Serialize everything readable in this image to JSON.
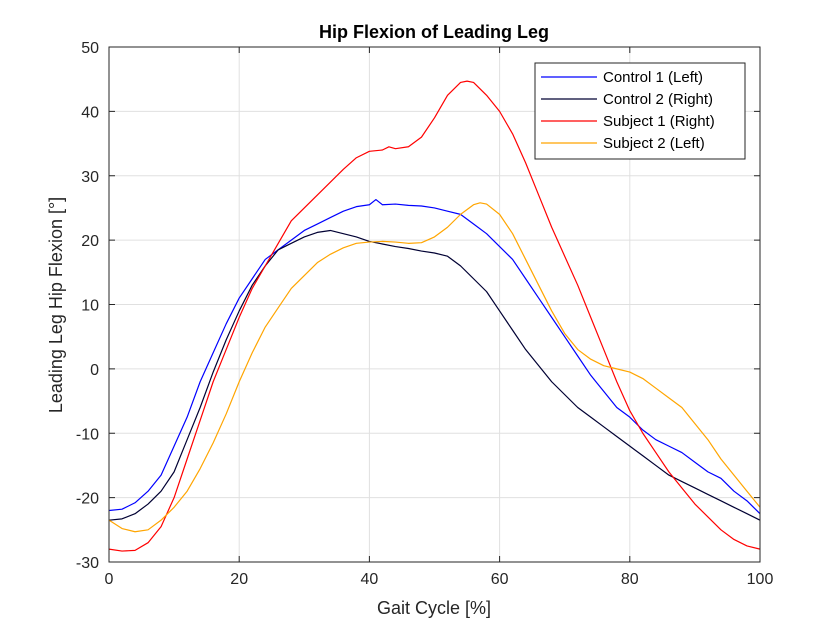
{
  "chart_data": {
    "type": "line",
    "title": "Hip Flexion of Leading Leg",
    "xlabel": "Gait Cycle [%]",
    "ylabel": "Leading Leg Hip Flexion [°]",
    "xlim": [
      0,
      100
    ],
    "ylim": [
      -30,
      50
    ],
    "xticks": [
      0,
      20,
      40,
      60,
      80,
      100
    ],
    "yticks": [
      -30,
      -20,
      -10,
      0,
      10,
      20,
      30,
      40,
      50
    ],
    "grid": true,
    "legend_position": "top-right",
    "series": [
      {
        "name": "Control 1 (Left)",
        "color": "#0000ff",
        "points": [
          [
            0,
            -22
          ],
          [
            2,
            -21.8
          ],
          [
            4,
            -20.8
          ],
          [
            6,
            -19
          ],
          [
            8,
            -16.5
          ],
          [
            10,
            -12
          ],
          [
            12,
            -7.5
          ],
          [
            14,
            -2
          ],
          [
            16,
            2.5
          ],
          [
            18,
            7
          ],
          [
            20,
            11
          ],
          [
            22,
            14
          ],
          [
            24,
            17
          ],
          [
            26,
            18.5
          ],
          [
            28,
            20
          ],
          [
            30,
            21.5
          ],
          [
            32,
            22.5
          ],
          [
            34,
            23.5
          ],
          [
            36,
            24.5
          ],
          [
            38,
            25.2
          ],
          [
            40,
            25.5
          ],
          [
            41,
            26.3
          ],
          [
            42,
            25.5
          ],
          [
            44,
            25.6
          ],
          [
            46,
            25.4
          ],
          [
            48,
            25.3
          ],
          [
            50,
            25
          ],
          [
            52,
            24.5
          ],
          [
            54,
            24
          ],
          [
            56,
            22.5
          ],
          [
            58,
            21
          ],
          [
            60,
            19
          ],
          [
            62,
            17
          ],
          [
            64,
            14
          ],
          [
            66,
            11
          ],
          [
            68,
            8
          ],
          [
            70,
            5
          ],
          [
            72,
            2
          ],
          [
            74,
            -1
          ],
          [
            76,
            -3.5
          ],
          [
            78,
            -6
          ],
          [
            80,
            -7.5
          ],
          [
            82,
            -9.5
          ],
          [
            84,
            -11
          ],
          [
            86,
            -12
          ],
          [
            88,
            -13
          ],
          [
            90,
            -14.5
          ],
          [
            92,
            -16
          ],
          [
            94,
            -17
          ],
          [
            96,
            -19
          ],
          [
            98,
            -20.5
          ],
          [
            100,
            -22.5
          ]
        ]
      },
      {
        "name": "Control 2 (Right)",
        "color": "#000033",
        "points": [
          [
            0,
            -23.5
          ],
          [
            2,
            -23.3
          ],
          [
            4,
            -22.5
          ],
          [
            6,
            -21
          ],
          [
            8,
            -19
          ],
          [
            10,
            -16
          ],
          [
            12,
            -11
          ],
          [
            14,
            -6
          ],
          [
            16,
            -0.5
          ],
          [
            18,
            4.5
          ],
          [
            20,
            9
          ],
          [
            22,
            13
          ],
          [
            24,
            16
          ],
          [
            26,
            18.5
          ],
          [
            28,
            19.5
          ],
          [
            30,
            20.5
          ],
          [
            32,
            21.2
          ],
          [
            34,
            21.5
          ],
          [
            36,
            21
          ],
          [
            38,
            20.5
          ],
          [
            40,
            19.8
          ],
          [
            42,
            19.4
          ],
          [
            44,
            19
          ],
          [
            46,
            18.7
          ],
          [
            48,
            18.3
          ],
          [
            50,
            18
          ],
          [
            52,
            17.5
          ],
          [
            54,
            16
          ],
          [
            56,
            14
          ],
          [
            58,
            12
          ],
          [
            60,
            9
          ],
          [
            62,
            6
          ],
          [
            64,
            3
          ],
          [
            66,
            0.5
          ],
          [
            68,
            -2
          ],
          [
            70,
            -4
          ],
          [
            72,
            -6
          ],
          [
            74,
            -7.5
          ],
          [
            76,
            -9
          ],
          [
            78,
            -10.5
          ],
          [
            80,
            -12
          ],
          [
            82,
            -13.5
          ],
          [
            84,
            -15
          ],
          [
            86,
            -16.5
          ],
          [
            88,
            -17.5
          ],
          [
            90,
            -18.5
          ],
          [
            92,
            -19.5
          ],
          [
            94,
            -20.5
          ],
          [
            96,
            -21.5
          ],
          [
            98,
            -22.5
          ],
          [
            100,
            -23.5
          ]
        ]
      },
      {
        "name": "Subject 1 (Right)",
        "color": "#ff0000",
        "points": [
          [
            0,
            -28
          ],
          [
            2,
            -28.3
          ],
          [
            4,
            -28.2
          ],
          [
            6,
            -27
          ],
          [
            8,
            -24.5
          ],
          [
            10,
            -20
          ],
          [
            12,
            -14
          ],
          [
            14,
            -8
          ],
          [
            16,
            -2
          ],
          [
            18,
            3
          ],
          [
            20,
            8
          ],
          [
            22,
            12.5
          ],
          [
            24,
            16
          ],
          [
            26,
            19.5
          ],
          [
            28,
            23
          ],
          [
            30,
            25
          ],
          [
            32,
            27
          ],
          [
            34,
            29
          ],
          [
            36,
            31
          ],
          [
            38,
            32.8
          ],
          [
            40,
            33.8
          ],
          [
            42,
            34
          ],
          [
            43,
            34.5
          ],
          [
            44,
            34.2
          ],
          [
            46,
            34.5
          ],
          [
            48,
            36
          ],
          [
            50,
            39
          ],
          [
            52,
            42.5
          ],
          [
            54,
            44.5
          ],
          [
            55,
            44.7
          ],
          [
            56,
            44.5
          ],
          [
            58,
            42.5
          ],
          [
            60,
            40
          ],
          [
            62,
            36.5
          ],
          [
            64,
            32
          ],
          [
            66,
            27
          ],
          [
            68,
            22
          ],
          [
            70,
            17.5
          ],
          [
            72,
            13
          ],
          [
            74,
            8
          ],
          [
            76,
            3
          ],
          [
            78,
            -2
          ],
          [
            80,
            -6.5
          ],
          [
            82,
            -10
          ],
          [
            84,
            -13
          ],
          [
            86,
            -16
          ],
          [
            88,
            -18.5
          ],
          [
            90,
            -21
          ],
          [
            92,
            -23
          ],
          [
            94,
            -25
          ],
          [
            96,
            -26.5
          ],
          [
            98,
            -27.5
          ],
          [
            100,
            -28
          ]
        ]
      },
      {
        "name": "Subject 2 (Left)",
        "color": "#ffa500",
        "points": [
          [
            0,
            -23.5
          ],
          [
            2,
            -24.8
          ],
          [
            4,
            -25.3
          ],
          [
            6,
            -25
          ],
          [
            8,
            -23.5
          ],
          [
            10,
            -21.5
          ],
          [
            12,
            -19
          ],
          [
            14,
            -15.5
          ],
          [
            16,
            -11.5
          ],
          [
            18,
            -7
          ],
          [
            20,
            -2
          ],
          [
            22,
            2.5
          ],
          [
            24,
            6.5
          ],
          [
            26,
            9.5
          ],
          [
            28,
            12.5
          ],
          [
            30,
            14.5
          ],
          [
            32,
            16.5
          ],
          [
            34,
            17.8
          ],
          [
            36,
            18.8
          ],
          [
            38,
            19.5
          ],
          [
            40,
            19.7
          ],
          [
            42,
            19.8
          ],
          [
            44,
            19.7
          ],
          [
            46,
            19.5
          ],
          [
            48,
            19.6
          ],
          [
            50,
            20.5
          ],
          [
            52,
            22
          ],
          [
            54,
            24
          ],
          [
            56,
            25.5
          ],
          [
            57,
            25.8
          ],
          [
            58,
            25.6
          ],
          [
            60,
            24
          ],
          [
            62,
            21
          ],
          [
            64,
            17
          ],
          [
            66,
            13
          ],
          [
            68,
            9
          ],
          [
            70,
            5.5
          ],
          [
            72,
            3
          ],
          [
            74,
            1.5
          ],
          [
            76,
            0.5
          ],
          [
            78,
            0
          ],
          [
            80,
            -0.5
          ],
          [
            82,
            -1.5
          ],
          [
            84,
            -3
          ],
          [
            86,
            -4.5
          ],
          [
            88,
            -6
          ],
          [
            90,
            -8.5
          ],
          [
            92,
            -11
          ],
          [
            94,
            -14
          ],
          [
            96,
            -16.5
          ],
          [
            98,
            -19
          ],
          [
            100,
            -21.5
          ]
        ]
      }
    ]
  }
}
